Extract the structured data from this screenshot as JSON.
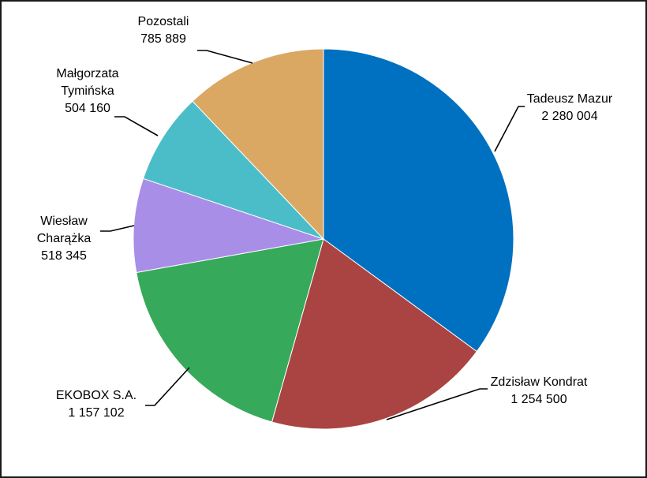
{
  "chart_data": {
    "type": "pie",
    "title": "",
    "slices": [
      {
        "label_lines": [
          "Tadeusz Mazur"
        ],
        "value_text": "2 280 004",
        "value": 2280004,
        "color": "#0070c0"
      },
      {
        "label_lines": [
          "Zdzisław Kondrat"
        ],
        "value_text": "1 254 500",
        "value": 1254500,
        "color": "#a94442"
      },
      {
        "label_lines": [
          "EKOBOX S.A."
        ],
        "value_text": "1 157 102",
        "value": 1157102,
        "color": "#36a95b"
      },
      {
        "label_lines": [
          "Wiesław",
          "Charążka"
        ],
        "value_text": "518 345",
        "value": 518345,
        "color": "#a98ee8"
      },
      {
        "label_lines": [
          "Małgorzata",
          "Tymińska"
        ],
        "value_text": "504 160",
        "value": 504160,
        "color": "#4bbdc8"
      },
      {
        "label_lines": [
          "Pozostali"
        ],
        "value_text": "785 889",
        "value": 785889,
        "color": "#dba864"
      }
    ],
    "start": "12 o'clock",
    "direction": "clockwise",
    "legend": "none"
  }
}
